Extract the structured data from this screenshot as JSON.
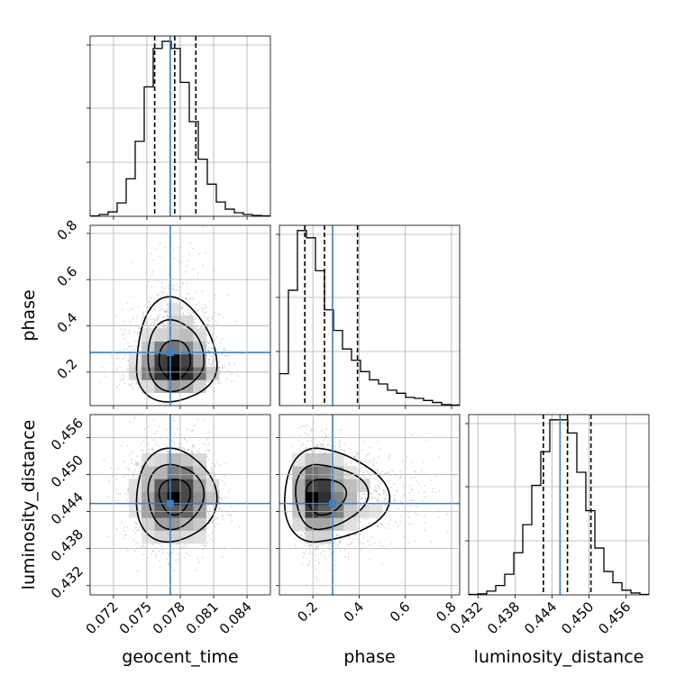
{
  "chart_data": {
    "type": "corner",
    "parameters": [
      "geocent_time",
      "phase",
      "luminosity_distance"
    ],
    "colors": {
      "truth": "#3d7fc1",
      "hist": "#000000",
      "grid": "#b0b0b0",
      "points": "#777777"
    },
    "grid": true,
    "truths": {
      "geocent_time": 0.0771,
      "phase": 0.285,
      "luminosity_distance": 0.4453
    },
    "ranges": {
      "geocent_time": [
        0.0699,
        0.0861
      ],
      "phase": [
        0.055,
        0.835
      ],
      "luminosity_distance": [
        0.4305,
        0.4597
      ]
    },
    "ticks": {
      "geocent_time": [
        0.072,
        0.075,
        0.078,
        0.081,
        0.084
      ],
      "phase": [
        0.2,
        0.4,
        0.6,
        0.8
      ],
      "luminosity_distance": [
        0.432,
        0.438,
        0.444,
        0.45,
        0.456
      ]
    },
    "tick_labels": {
      "geocent_time": [
        "0.072",
        "0.075",
        "0.078",
        "0.081",
        "0.084"
      ],
      "phase": [
        "0.2",
        "0.4",
        "0.6",
        "0.8"
      ],
      "luminosity_distance": [
        "0.432",
        "0.438",
        "0.444",
        "0.450",
        "0.456"
      ]
    },
    "quantiles": {
      "geocent_time": [
        0.0757,
        0.0775,
        0.0794
      ],
      "phase": [
        0.165,
        0.25,
        0.393
      ],
      "luminosity_distance": [
        0.4426,
        0.4465,
        0.4503
      ]
    },
    "histograms": {
      "geocent_time": {
        "edges": [
          0.0699,
          0.07071,
          0.07152,
          0.07233,
          0.07314,
          0.07395,
          0.07476,
          0.07557,
          0.07638,
          0.07719,
          0.078,
          0.07881,
          0.07962,
          0.08043,
          0.08124,
          0.08205,
          0.08286,
          0.08367,
          0.08448,
          0.08529,
          0.0861
        ],
        "counts": [
          0.5,
          2,
          5,
          15,
          42,
          84,
          145,
          188,
          196,
          188,
          150,
          106,
          64,
          36,
          16,
          8,
          4,
          2,
          1,
          0.5
        ]
      },
      "phase": {
        "edges": [
          0.055,
          0.094,
          0.133,
          0.172,
          0.211,
          0.25,
          0.289,
          0.328,
          0.367,
          0.406,
          0.445,
          0.484,
          0.523,
          0.562,
          0.601,
          0.64,
          0.679,
          0.718,
          0.757,
          0.796,
          0.835
        ],
        "counts": [
          31,
          112,
          170,
          163,
          131,
          93,
          73,
          55,
          44,
          33,
          25,
          21,
          15,
          12,
          8,
          7,
          5,
          3,
          1,
          0.5
        ]
      },
      "luminosity_distance": {
        "edges": [
          0.4305,
          0.43196,
          0.43342,
          0.43488,
          0.43634,
          0.4378,
          0.43926,
          0.44072,
          0.44218,
          0.44364,
          0.4451,
          0.44656,
          0.44802,
          0.44948,
          0.45094,
          0.4524,
          0.45386,
          0.45532,
          0.45678,
          0.45824,
          0.4597
        ],
        "counts": [
          0.5,
          1,
          4,
          10,
          22,
          45,
          75,
          117,
          153,
          187,
          187,
          173,
          131,
          90,
          50,
          25,
          13,
          5,
          2,
          0.5
        ]
      }
    },
    "correlation": {
      "phase_vs_geocent_time": 0.0,
      "luminosity_distance_vs_geocent_time": 0.0,
      "luminosity_distance_vs_phase": 0.05
    }
  }
}
